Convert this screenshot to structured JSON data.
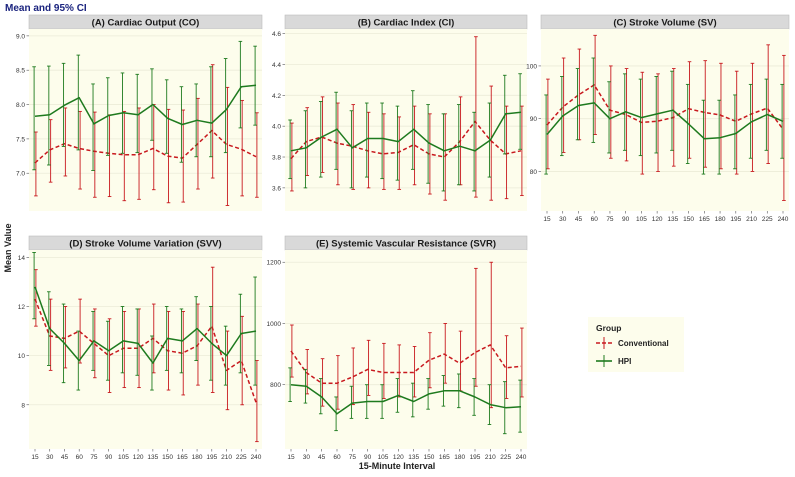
{
  "figure": {
    "title": "Mean and 95% CI",
    "ylabel": "Mean Value",
    "xlabel": "15-Minute Interval",
    "legend_title": "Group",
    "legend_items": [
      {
        "label": "Conventional",
        "color": "#c8191e",
        "dashed": true
      },
      {
        "label": "HPI",
        "color": "#1e7a1e",
        "dashed": false
      }
    ],
    "colors": {
      "panel_bg": "#fdfdec",
      "strip_bg": "#d9d9d9",
      "grid": "#ebebd8",
      "title": "#1a237e"
    }
  },
  "chart_data": [
    {
      "type": "line",
      "title": "(A) Cardiac Output (CO)",
      "x": [
        15,
        30,
        45,
        60,
        75,
        90,
        105,
        120,
        135,
        150,
        165,
        180,
        195,
        210,
        225,
        240
      ],
      "ylim": [
        6.45,
        9.1
      ],
      "yticks": [
        7.0,
        7.5,
        8.0,
        8.5,
        9.0
      ],
      "ytick_labels": [
        "7.0",
        "7.5",
        "8.0",
        "8.5",
        "9.0"
      ],
      "show_xticks": false,
      "series": [
        {
          "name": "Conventional",
          "mean": [
            7.15,
            7.34,
            7.43,
            7.36,
            7.32,
            7.29,
            7.27,
            7.27,
            7.36,
            7.25,
            7.22,
            7.42,
            7.62,
            7.42,
            7.35,
            7.24
          ],
          "lower": [
            6.67,
            6.87,
            6.96,
            6.77,
            6.65,
            6.66,
            6.6,
            6.62,
            6.76,
            6.57,
            6.58,
            6.77,
            6.93,
            6.53,
            6.67,
            6.65
          ],
          "upper": [
            7.6,
            7.78,
            7.95,
            7.9,
            7.89,
            7.85,
            7.9,
            7.95,
            8.0,
            7.93,
            7.92,
            8.09,
            8.58,
            8.25,
            8.06,
            7.88
          ]
        },
        {
          "name": "HPI",
          "mean": [
            7.83,
            7.85,
            7.99,
            8.1,
            7.72,
            7.84,
            7.88,
            7.85,
            8.0,
            7.8,
            7.71,
            7.77,
            7.73,
            7.93,
            8.26,
            8.28
          ],
          "lower": [
            7.05,
            7.12,
            7.39,
            7.34,
            7.04,
            7.26,
            7.29,
            7.3,
            7.48,
            7.29,
            7.16,
            7.24,
            7.24,
            7.3,
            7.66,
            7.7
          ],
          "upper": [
            8.55,
            8.56,
            8.6,
            8.72,
            8.3,
            8.39,
            8.46,
            8.44,
            8.52,
            8.36,
            8.26,
            8.3,
            8.55,
            8.67,
            8.92,
            8.85
          ]
        }
      ]
    },
    {
      "type": "line",
      "title": "(B) Cardiac Index (CI)",
      "x": [
        15,
        30,
        45,
        60,
        75,
        90,
        105,
        120,
        135,
        150,
        165,
        180,
        195,
        210,
        225,
        240
      ],
      "ylim": [
        3.45,
        4.63
      ],
      "yticks": [
        3.6,
        3.8,
        4.0,
        4.2,
        4.4,
        4.6
      ],
      "ytick_labels": [
        "3.6",
        "3.8",
        "4.0",
        "4.2",
        "4.4",
        "4.6"
      ],
      "show_xticks": false,
      "series": [
        {
          "name": "Conventional",
          "mean": [
            3.79,
            3.9,
            3.93,
            3.89,
            3.87,
            3.84,
            3.82,
            3.83,
            3.88,
            3.82,
            3.8,
            3.9,
            4.03,
            3.91,
            3.82,
            3.84
          ],
          "lower": [
            3.58,
            3.68,
            3.7,
            3.62,
            3.59,
            3.6,
            3.59,
            3.59,
            3.62,
            3.56,
            3.52,
            3.62,
            3.54,
            3.52,
            3.53,
            3.55
          ],
          "upper": [
            4.02,
            4.12,
            4.19,
            4.15,
            4.14,
            4.09,
            4.08,
            4.06,
            4.13,
            4.08,
            4.08,
            4.19,
            4.58,
            4.26,
            4.13,
            4.13
          ]
        },
        {
          "name": "HPI",
          "mean": [
            3.84,
            3.86,
            3.93,
            3.98,
            3.86,
            3.92,
            3.92,
            3.9,
            3.98,
            3.89,
            3.84,
            3.87,
            3.84,
            3.91,
            4.08,
            4.09
          ],
          "lower": [
            3.66,
            3.6,
            3.67,
            3.72,
            3.6,
            3.67,
            3.66,
            3.65,
            3.72,
            3.63,
            3.58,
            3.62,
            3.58,
            3.67,
            3.82,
            3.85
          ],
          "upper": [
            4.04,
            4.1,
            4.16,
            4.22,
            4.1,
            4.15,
            4.15,
            4.13,
            4.23,
            4.14,
            4.08,
            4.14,
            4.09,
            4.15,
            4.33,
            4.34
          ]
        }
      ]
    },
    {
      "type": "line",
      "title": "(C) Stroke Volume (SV)",
      "x": [
        15,
        30,
        45,
        60,
        75,
        90,
        105,
        120,
        135,
        150,
        165,
        180,
        195,
        210,
        225,
        240
      ],
      "ylim": [
        72.5,
        107
      ],
      "yticks": [
        80,
        90,
        100
      ],
      "ytick_labels": [
        "80",
        "90",
        "100"
      ],
      "show_xticks": true,
      "series": [
        {
          "name": "Conventional",
          "mean": [
            88.8,
            92.2,
            94.5,
            96.4,
            91.6,
            90.8,
            89.3,
            89.5,
            90.2,
            91.9,
            91.2,
            90.7,
            89.5,
            90.9,
            92.0,
            88.0
          ],
          "lower": [
            80.5,
            83.6,
            86.0,
            87.0,
            82.5,
            82.0,
            79.5,
            80.0,
            81.0,
            82.5,
            80.8,
            80.5,
            79.5,
            80.0,
            81.5,
            74.5
          ],
          "upper": [
            97.5,
            101.5,
            103.2,
            105.8,
            100.0,
            99.5,
            98.8,
            98.5,
            99.5,
            100.8,
            101.0,
            100.5,
            99.0,
            100.5,
            104.0,
            102.0
          ]
        },
        {
          "name": "HPI",
          "mean": [
            87.0,
            90.5,
            92.5,
            93.0,
            90.0,
            91.3,
            90.2,
            90.9,
            91.6,
            89.0,
            86.2,
            86.4,
            87.2,
            89.4,
            90.8,
            89.5
          ],
          "lower": [
            79.5,
            83.0,
            86.0,
            85.5,
            83.5,
            84.0,
            83.0,
            83.5,
            84.0,
            81.5,
            79.5,
            79.5,
            80.5,
            82.5,
            84.0,
            82.5
          ],
          "upper": [
            94.5,
            98.0,
            99.5,
            101.5,
            97.0,
            98.5,
            97.5,
            98.0,
            99.0,
            96.5,
            93.5,
            93.5,
            94.5,
            96.5,
            97.5,
            96.5
          ]
        }
      ]
    },
    {
      "type": "line",
      "title": "(D) Stroke Volume Variation (SVV)",
      "x": [
        15,
        30,
        45,
        60,
        75,
        90,
        105,
        120,
        135,
        150,
        165,
        180,
        195,
        210,
        225,
        240
      ],
      "ylim": [
        6.2,
        14.3
      ],
      "yticks": [
        8,
        10,
        12,
        14
      ],
      "ytick_labels": [
        "8",
        "10",
        "12",
        "14"
      ],
      "show_xticks": true,
      "series": [
        {
          "name": "Conventional",
          "mean": [
            12.3,
            10.8,
            10.7,
            11.0,
            10.5,
            10.0,
            10.3,
            10.3,
            10.7,
            10.2,
            10.1,
            10.4,
            11.2,
            9.4,
            9.8,
            8.1
          ],
          "lower": [
            11.2,
            9.4,
            9.5,
            9.7,
            9.1,
            8.5,
            8.7,
            8.7,
            9.3,
            8.6,
            8.4,
            8.8,
            8.5,
            7.8,
            8.0,
            6.5
          ],
          "upper": [
            13.5,
            12.3,
            12.0,
            12.3,
            11.9,
            11.5,
            11.8,
            11.9,
            12.1,
            11.8,
            11.8,
            12.1,
            13.6,
            11.0,
            11.6,
            9.8
          ]
        },
        {
          "name": "HPI",
          "mean": [
            12.8,
            11.1,
            10.5,
            9.8,
            10.6,
            10.2,
            10.6,
            10.5,
            9.7,
            10.7,
            10.6,
            11.1,
            10.5,
            10.0,
            10.9,
            11.0
          ],
          "lower": [
            11.5,
            9.6,
            8.9,
            8.6,
            9.4,
            9.0,
            9.3,
            9.2,
            8.6,
            9.4,
            9.3,
            9.8,
            9.0,
            8.8,
            9.3,
            8.8
          ],
          "upper": [
            14.2,
            12.6,
            12.1,
            11.0,
            11.8,
            11.4,
            12.0,
            11.9,
            10.8,
            12.0,
            11.9,
            12.4,
            12.0,
            11.2,
            12.5,
            13.2
          ]
        }
      ]
    },
    {
      "type": "line",
      "title": "(E) Systemic Vascular Resistance (SVR)",
      "x": [
        15,
        30,
        45,
        60,
        75,
        90,
        105,
        120,
        135,
        150,
        165,
        180,
        195,
        210,
        225,
        240
      ],
      "ylim": [
        590,
        1240
      ],
      "yticks": [
        800,
        1000,
        1200
      ],
      "ytick_labels": [
        "800",
        "1000",
        "1200"
      ],
      "show_xticks": true,
      "series": [
        {
          "name": "Conventional",
          "mean": [
            910,
            840,
            805,
            805,
            825,
            850,
            840,
            840,
            840,
            880,
            900,
            870,
            905,
            930,
            855,
            860
          ],
          "lower": [
            825,
            770,
            730,
            720,
            735,
            765,
            755,
            760,
            760,
            790,
            805,
            780,
            795,
            725,
            755,
            760
          ],
          "upper": [
            995,
            915,
            885,
            895,
            920,
            945,
            935,
            930,
            925,
            970,
            1000,
            975,
            1180,
            1200,
            960,
            985
          ]
        },
        {
          "name": "HPI",
          "mean": [
            800,
            795,
            760,
            705,
            740,
            745,
            745,
            765,
            745,
            770,
            780,
            780,
            760,
            735,
            725,
            728
          ],
          "lower": [
            745,
            740,
            705,
            650,
            690,
            690,
            690,
            710,
            695,
            720,
            730,
            725,
            700,
            670,
            640,
            645
          ],
          "upper": [
            855,
            850,
            820,
            760,
            795,
            800,
            800,
            820,
            805,
            820,
            830,
            835,
            820,
            800,
            810,
            815
          ]
        }
      ]
    }
  ]
}
